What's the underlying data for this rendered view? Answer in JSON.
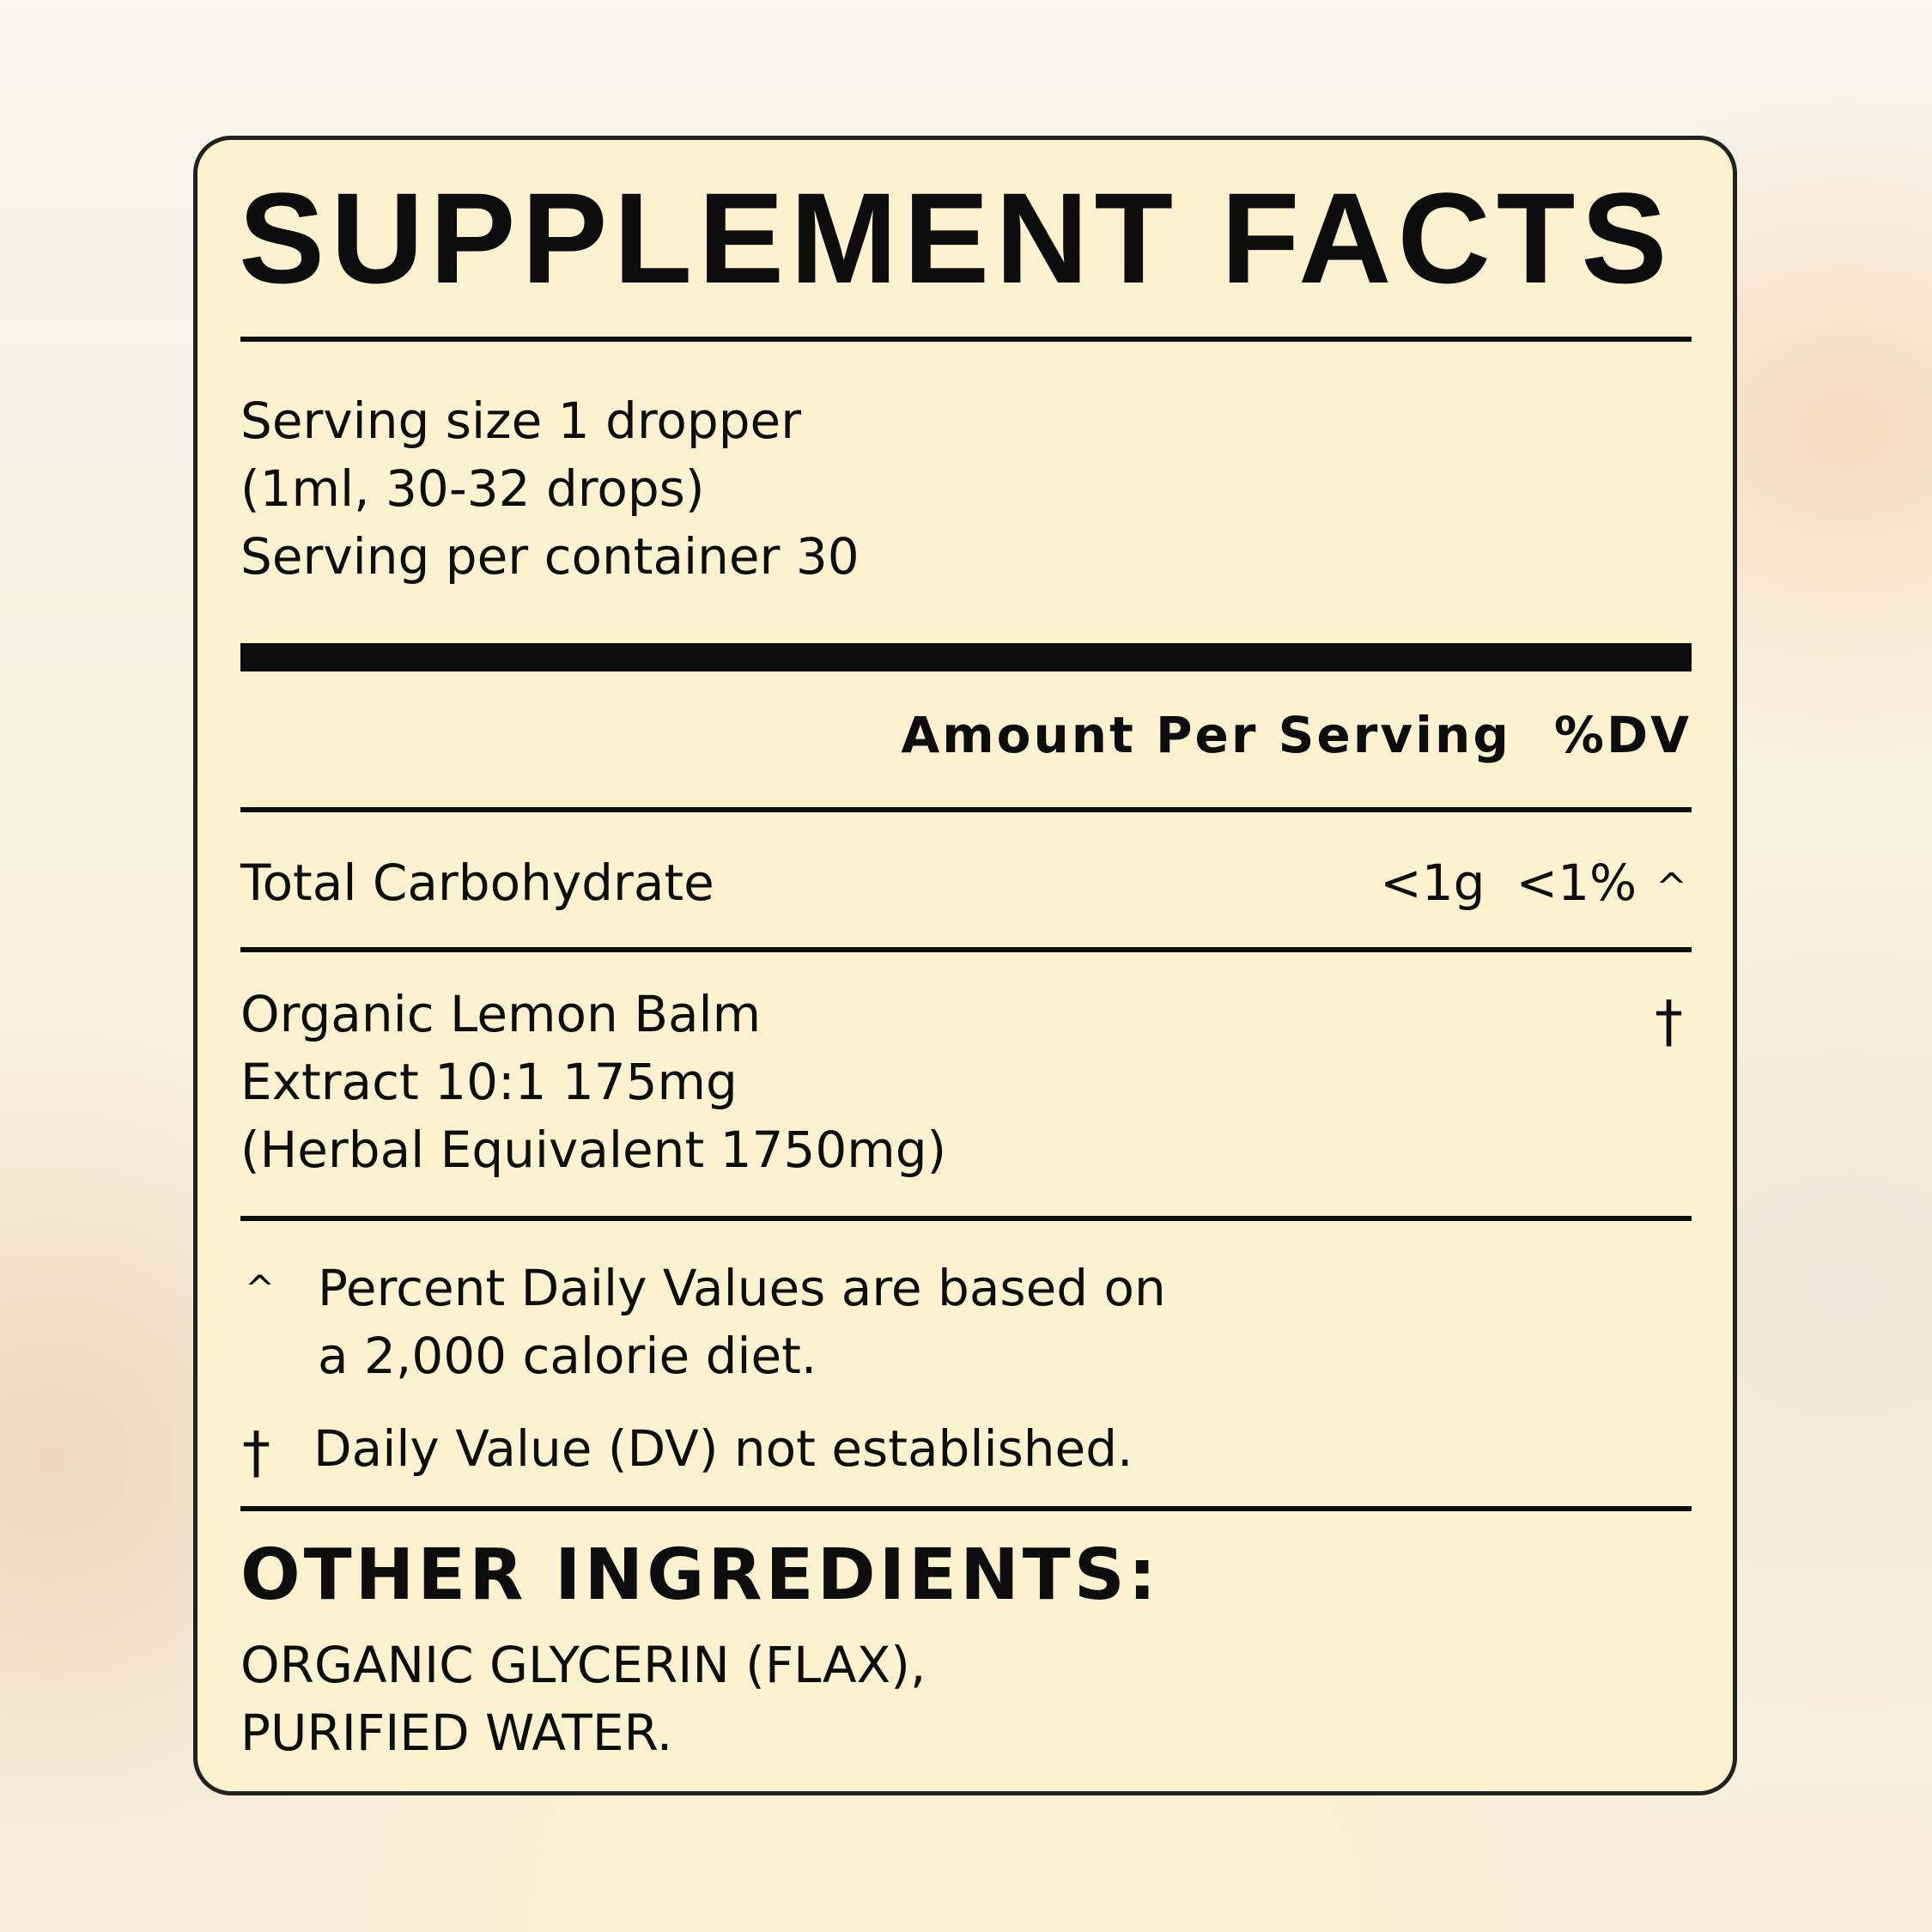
{
  "title": "SUPPLEMENT FACTS",
  "serving": {
    "lines": [
      "Serving size 1 dropper",
      "(1ml, 30-32 drops)",
      "Serving per container 30"
    ]
  },
  "header": {
    "amount": "Amount Per Serving",
    "dv": "%DV"
  },
  "rows": [
    {
      "name": "Total Carbohydrate",
      "amount": "<1g",
      "dv": "<1%",
      "mark": "^"
    },
    {
      "lines": [
        "Organic Lemon Balm",
        "Extract 10:1  175mg",
        "(Herbal Equivalent 1750mg)"
      ],
      "mark": "†"
    }
  ],
  "footnotes": [
    {
      "mark": "^",
      "lines": [
        "Percent Daily Values are based on",
        "a 2,000 calorie diet."
      ]
    },
    {
      "mark": "†",
      "lines": [
        "Daily Value (DV) not established."
      ]
    }
  ],
  "other": {
    "heading": "OTHER INGREDIENTS:",
    "lines": [
      "ORGANIC GLYCERIN (FLAX),",
      "PURIFIED WATER."
    ]
  },
  "colors": {
    "card": "#fdf2cf",
    "ink": "#0d0d0d",
    "border": "#222222"
  }
}
